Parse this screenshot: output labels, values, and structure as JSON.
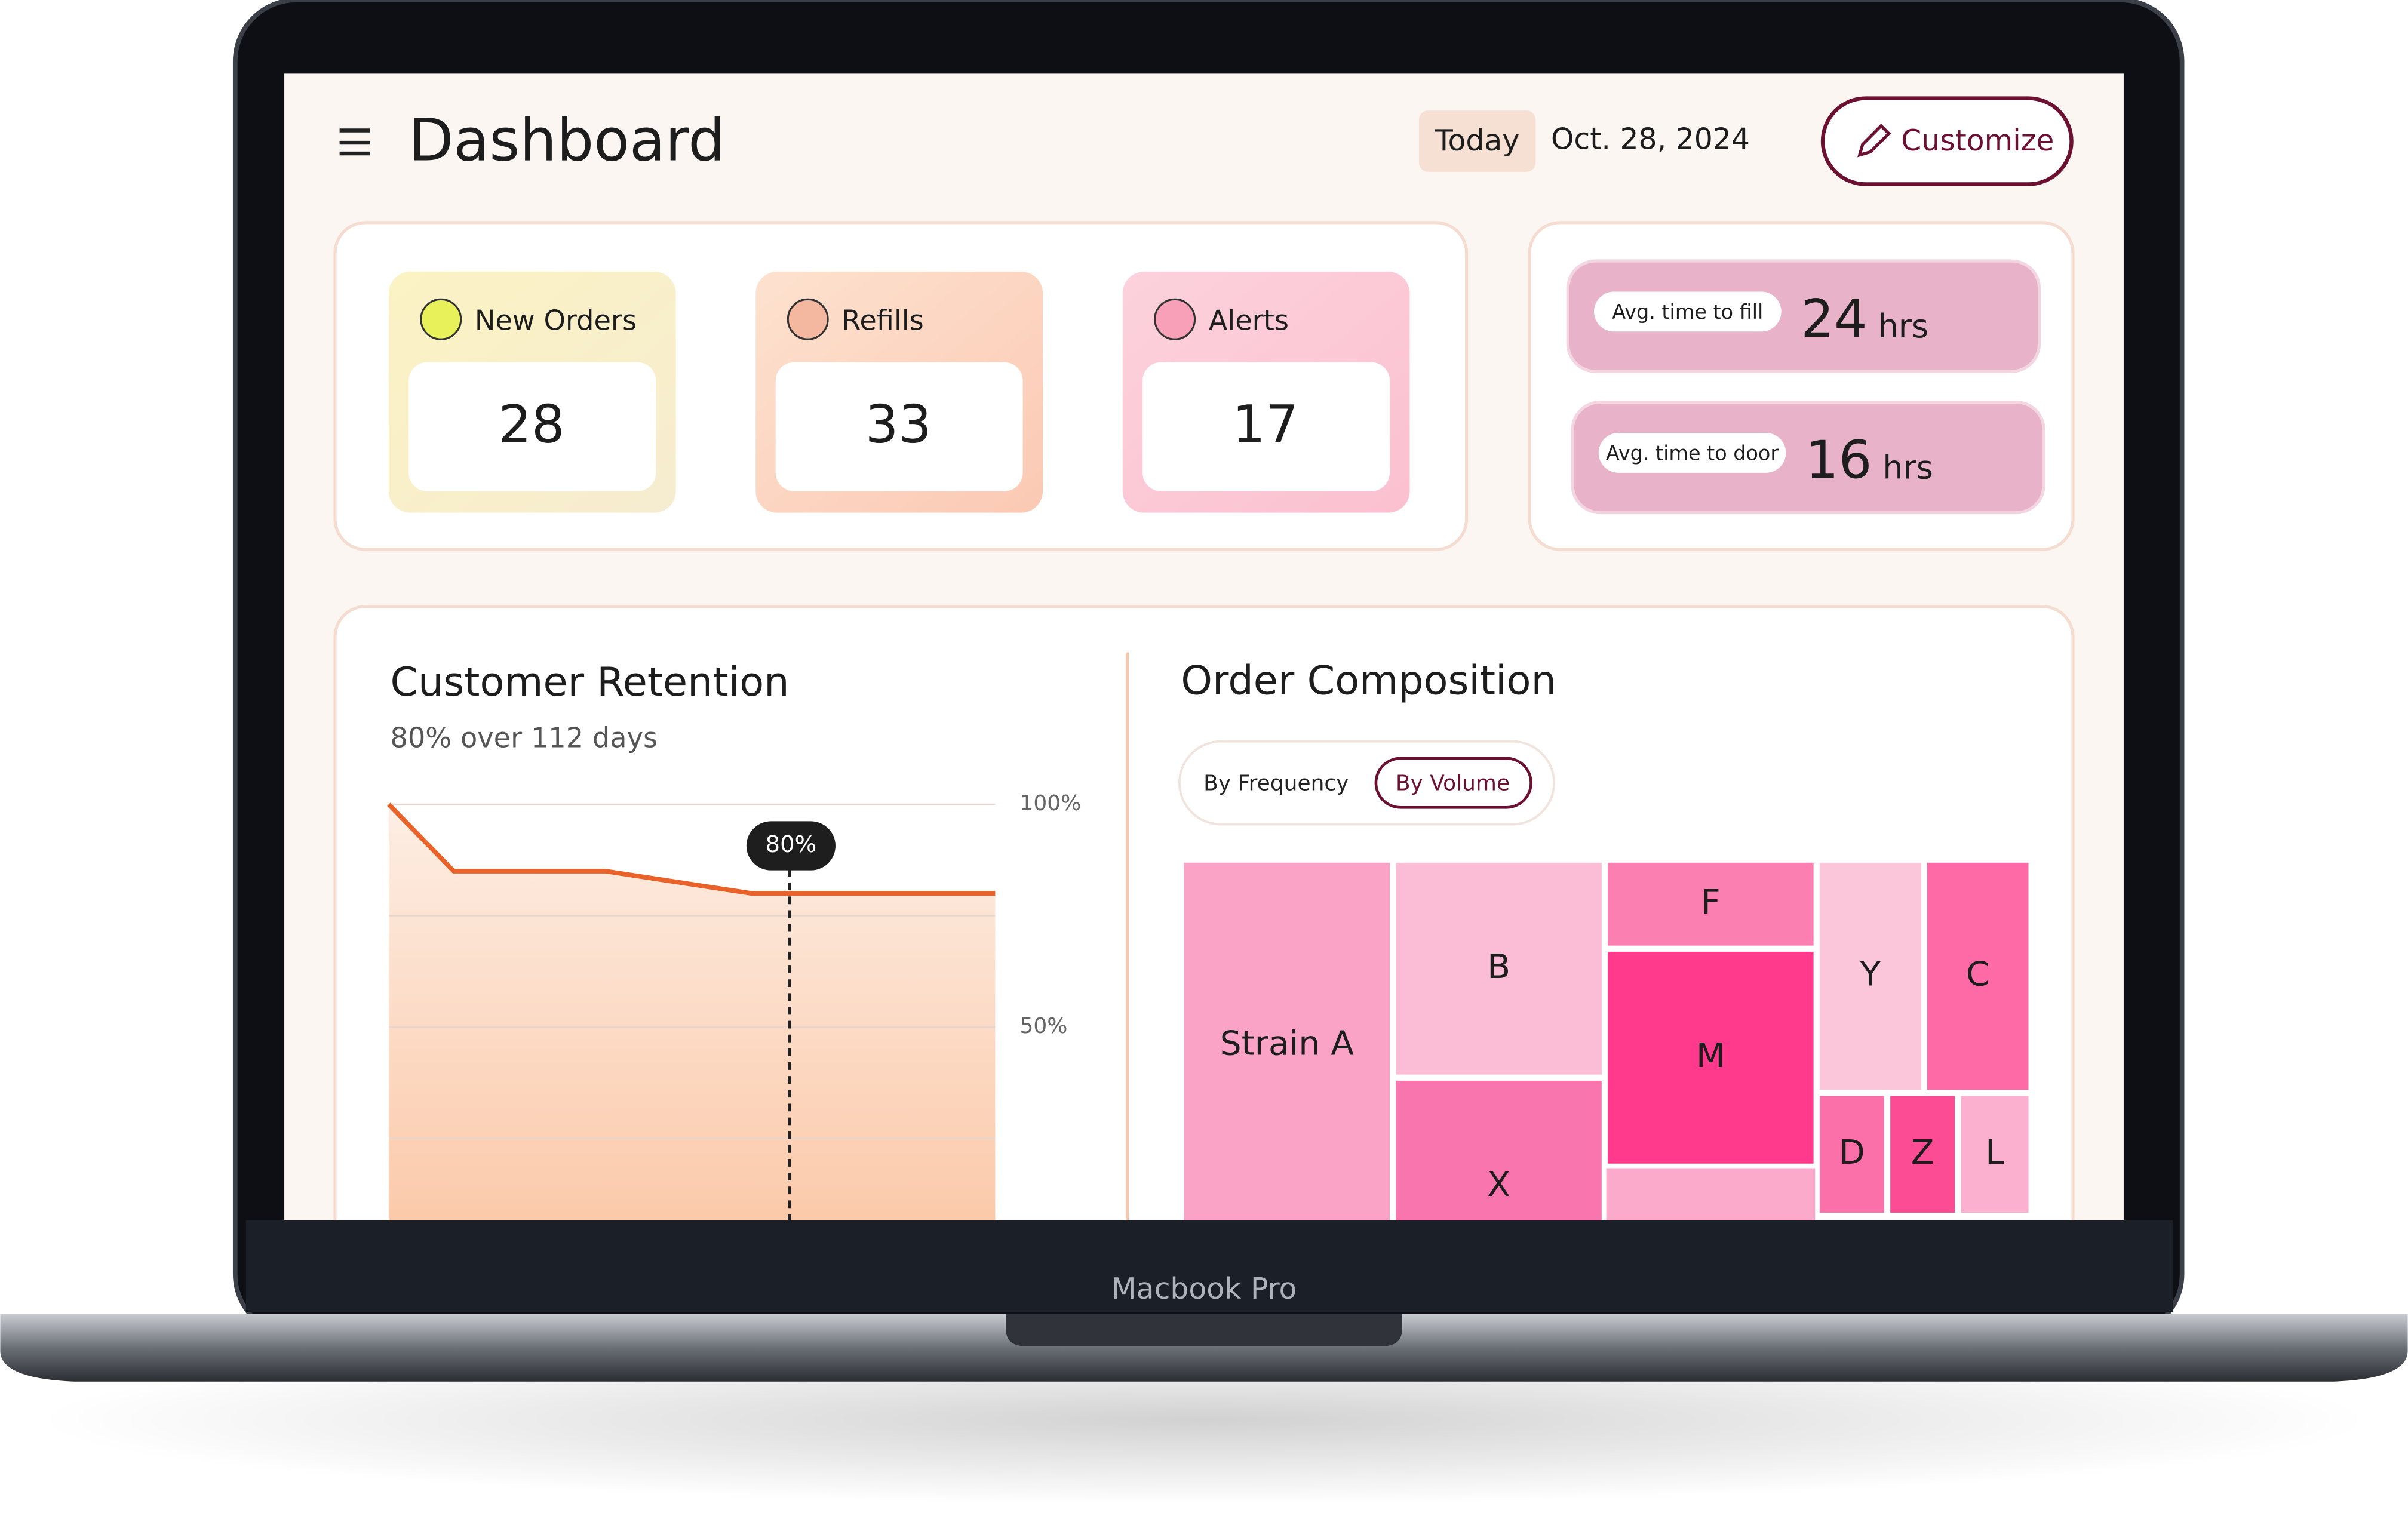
{
  "header": {
    "title": "Dashboard",
    "date_label": "Today",
    "date": "Oct. 28, 2024",
    "button": "Customize"
  },
  "stats": [
    {
      "label": "New Orders",
      "value": 28
    },
    {
      "label": "Refills",
      "value": 33
    },
    {
      "label": "Alerts",
      "value": 17
    }
  ],
  "timings": [
    {
      "label": "Avg. time to fill",
      "value": 24,
      "unit": "hrs"
    },
    {
      "label": "Avg. time to door",
      "value": 16,
      "unit": "hrs"
    }
  ],
  "chart_data": {
    "type": "line",
    "title": "Customer Retention",
    "subtitle": "80% over 112 days",
    "x": [
      0,
      12,
      40,
      67,
      112
    ],
    "series": [
      {
        "color": "#e8622a",
        "values": [
          100,
          85,
          85,
          80,
          80
        ]
      }
    ],
    "xlim": [
      0,
      112
    ],
    "ylim": [
      0,
      100
    ],
    "yticks": [
      {
        "value": 100,
        "label": "100%"
      },
      {
        "value": 50,
        "label": "50%"
      }
    ],
    "minor_yticks": [
      75,
      25
    ],
    "grid": true,
    "marker": {
      "x": 74,
      "value": 80,
      "label": "80%"
    }
  },
  "composition": {
    "title": "Order Composition",
    "tabs": [
      "By Frequency",
      "By Volume"
    ],
    "active_tab": 1,
    "tiles": [
      "Strain A",
      "B",
      "F",
      "M",
      "Y",
      "C",
      "X",
      "D",
      "Z",
      "L"
    ]
  },
  "device": "Macbook Pro"
}
